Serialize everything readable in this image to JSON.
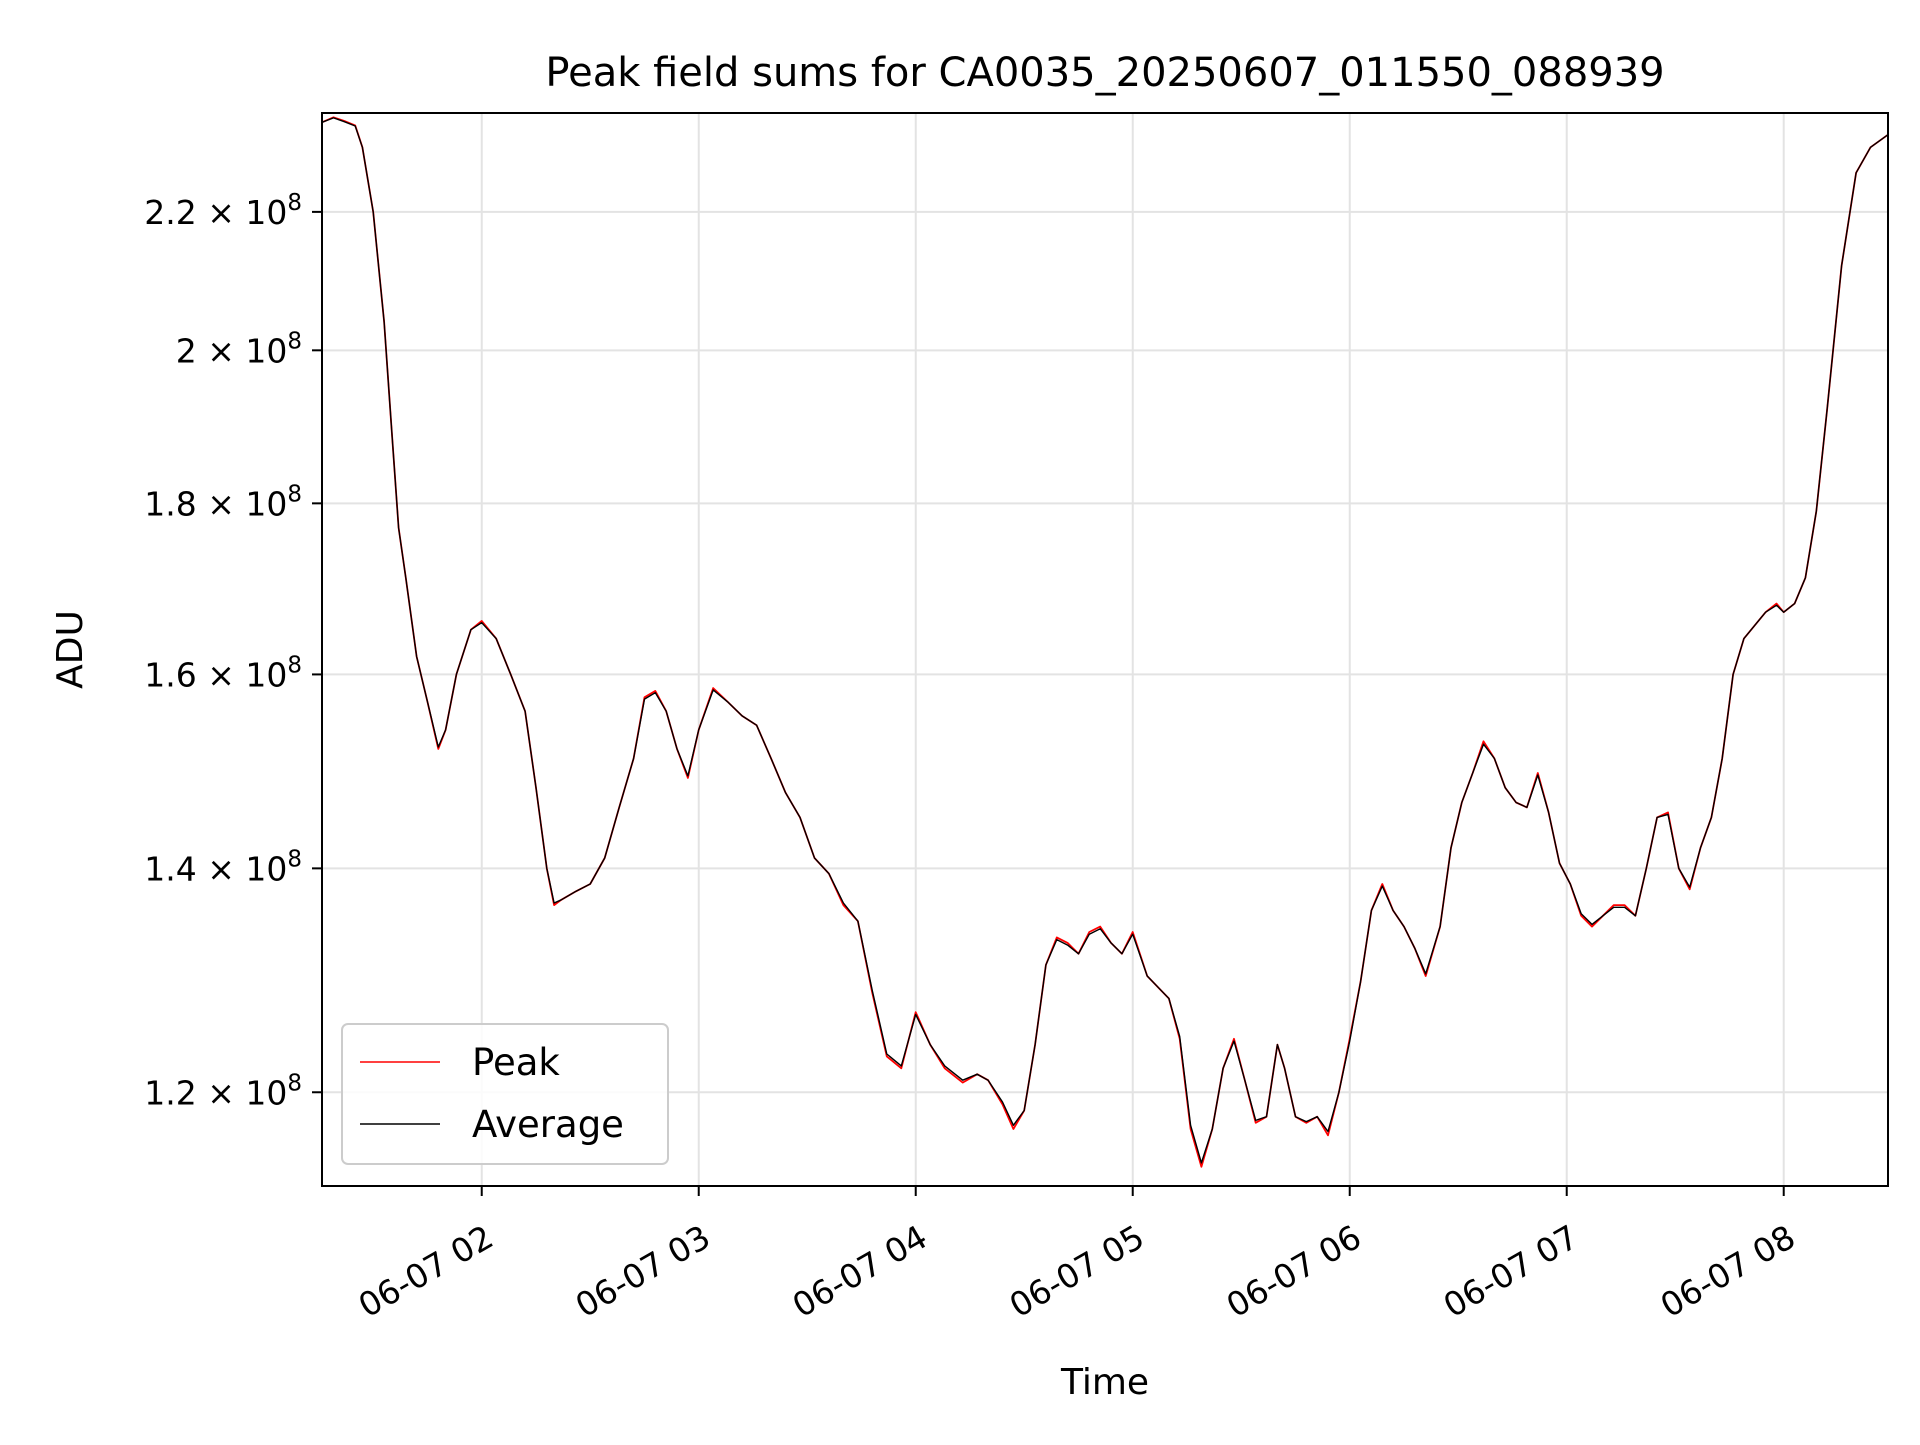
{
  "chart_data": {
    "type": "line",
    "title": "Peak field sums for CA0035_20250607_011550_088939",
    "xlabel": "Time",
    "ylabel": "ADU",
    "scale": {
      "x": "time",
      "y": "log"
    },
    "xlim": [
      "2025-06-07T01:15:50",
      "2025-06-07T08:28:50"
    ],
    "ylim": [
      112500000,
      235500000
    ],
    "xticks": [
      {
        "value": "2025-06-07T02:00",
        "label": "06-07 02"
      },
      {
        "value": "2025-06-07T03:00",
        "label": "06-07 03"
      },
      {
        "value": "2025-06-07T04:00",
        "label": "06-07 04"
      },
      {
        "value": "2025-06-07T05:00",
        "label": "06-07 05"
      },
      {
        "value": "2025-06-07T06:00",
        "label": "06-07 06"
      },
      {
        "value": "2025-06-07T07:00",
        "label": "06-07 07"
      },
      {
        "value": "2025-06-07T08:00",
        "label": "06-07 08"
      }
    ],
    "yticks": [
      {
        "value": 120000000,
        "mantissa": "1.2",
        "exp": "8"
      },
      {
        "value": 140000000,
        "mantissa": "1.4",
        "exp": "8"
      },
      {
        "value": 160000000,
        "mantissa": "1.6",
        "exp": "8"
      },
      {
        "value": 180000000,
        "mantissa": "1.8",
        "exp": "8"
      },
      {
        "value": 200000000,
        "mantissa": "2",
        "exp": "8"
      },
      {
        "value": 220000000,
        "mantissa": "2.2",
        "exp": "8"
      }
    ],
    "grid": true,
    "legend_position": "lower-left",
    "x": [
      "2025-06-07T01:15:50",
      "2025-06-07T01:19:00",
      "2025-06-07T01:22:00",
      "2025-06-07T01:25:00",
      "2025-06-07T01:27:00",
      "2025-06-07T01:30:00",
      "2025-06-07T01:33:00",
      "2025-06-07T01:35:00",
      "2025-06-07T01:37:00",
      "2025-06-07T01:39:00",
      "2025-06-07T01:42:00",
      "2025-06-07T01:45:00",
      "2025-06-07T01:48:00",
      "2025-06-07T01:50:00",
      "2025-06-07T01:53:00",
      "2025-06-07T01:57:00",
      "2025-06-07T02:00:00",
      "2025-06-07T02:04:00",
      "2025-06-07T02:08:00",
      "2025-06-07T02:12:00",
      "2025-06-07T02:15:00",
      "2025-06-07T02:18:00",
      "2025-06-07T02:20:00",
      "2025-06-07T02:22:00",
      "2025-06-07T02:26:00",
      "2025-06-07T02:30:00",
      "2025-06-07T02:34:00",
      "2025-06-07T02:38:00",
      "2025-06-07T02:42:00",
      "2025-06-07T02:45:00",
      "2025-06-07T02:48:00",
      "2025-06-07T02:51:00",
      "2025-06-07T02:54:00",
      "2025-06-07T02:57:00",
      "2025-06-07T03:00:00",
      "2025-06-07T03:04:00",
      "2025-06-07T03:08:00",
      "2025-06-07T03:12:00",
      "2025-06-07T03:16:00",
      "2025-06-07T03:20:00",
      "2025-06-07T03:24:00",
      "2025-06-07T03:28:00",
      "2025-06-07T03:32:00",
      "2025-06-07T03:36:00",
      "2025-06-07T03:40:00",
      "2025-06-07T03:44:00",
      "2025-06-07T03:48:00",
      "2025-06-07T03:52:00",
      "2025-06-07T03:56:00",
      "2025-06-07T04:00:00",
      "2025-06-07T04:04:00",
      "2025-06-07T04:08:00",
      "2025-06-07T04:13:00",
      "2025-06-07T04:17:00",
      "2025-06-07T04:20:00",
      "2025-06-07T04:24:00",
      "2025-06-07T04:27:00",
      "2025-06-07T04:30:00",
      "2025-06-07T04:33:00",
      "2025-06-07T04:36:00",
      "2025-06-07T04:39:00",
      "2025-06-07T04:42:00",
      "2025-06-07T04:45:00",
      "2025-06-07T04:48:00",
      "2025-06-07T04:51:00",
      "2025-06-07T04:54:00",
      "2025-06-07T04:57:00",
      "2025-06-07T05:00:00",
      "2025-06-07T05:04:00",
      "2025-06-07T05:07:00",
      "2025-06-07T05:10:00",
      "2025-06-07T05:13:00",
      "2025-06-07T05:16:00",
      "2025-06-07T05:19:00",
      "2025-06-07T05:22:00",
      "2025-06-07T05:25:00",
      "2025-06-07T05:28:00",
      "2025-06-07T05:31:00",
      "2025-06-07T05:34:00",
      "2025-06-07T05:37:00",
      "2025-06-07T05:40:00",
      "2025-06-07T05:42:00",
      "2025-06-07T05:45:00",
      "2025-06-07T05:48:00",
      "2025-06-07T05:51:00",
      "2025-06-07T05:54:00",
      "2025-06-07T05:57:00",
      "2025-06-07T06:00:00",
      "2025-06-07T06:03:00",
      "2025-06-07T06:06:00",
      "2025-06-07T06:09:00",
      "2025-06-07T06:12:00",
      "2025-06-07T06:15:00",
      "2025-06-07T06:18:00",
      "2025-06-07T06:21:00",
      "2025-06-07T06:25:00",
      "2025-06-07T06:28:00",
      "2025-06-07T06:31:00",
      "2025-06-07T06:34:00",
      "2025-06-07T06:37:00",
      "2025-06-07T06:40:00",
      "2025-06-07T06:43:00",
      "2025-06-07T06:46:00",
      "2025-06-07T06:49:00",
      "2025-06-07T06:52:00",
      "2025-06-07T06:55:00",
      "2025-06-07T06:58:00",
      "2025-06-07T07:01:00",
      "2025-06-07T07:04:00",
      "2025-06-07T07:07:00",
      "2025-06-07T07:10:00",
      "2025-06-07T07:13:00",
      "2025-06-07T07:16:00",
      "2025-06-07T07:19:00",
      "2025-06-07T07:22:00",
      "2025-06-07T07:25:00",
      "2025-06-07T07:28:00",
      "2025-06-07T07:31:00",
      "2025-06-07T07:34:00",
      "2025-06-07T07:37:00",
      "2025-06-07T07:40:00",
      "2025-06-07T07:43:00",
      "2025-06-07T07:46:00",
      "2025-06-07T07:49:00",
      "2025-06-07T07:52:00",
      "2025-06-07T07:55:00",
      "2025-06-07T07:58:00",
      "2025-06-07T08:00:00",
      "2025-06-07T08:03:00",
      "2025-06-07T08:06:00",
      "2025-06-07T08:09:00",
      "2025-06-07T08:12:00",
      "2025-06-07T08:16:00",
      "2025-06-07T08:20:00",
      "2025-06-07T08:24:00",
      "2025-06-07T08:28:50"
    ],
    "series": [
      {
        "name": "Peak",
        "color": "#ff0000",
        "values": [
          234.0,
          234.8,
          234.2,
          233.5,
          230.0,
          220.0,
          204.0,
          190.0,
          177.0,
          171.0,
          162.0,
          157.0,
          152.0,
          154.0,
          160.0,
          165.0,
          166.0,
          164.0,
          160.0,
          156.0,
          148.0,
          140.0,
          136.5,
          137.0,
          137.8,
          138.5,
          141.0,
          146.0,
          151.0,
          157.5,
          158.2,
          156.0,
          152.0,
          149.0,
          154.0,
          158.5,
          157.0,
          155.5,
          154.5,
          151.0,
          147.5,
          145.0,
          141.0,
          139.5,
          136.5,
          135.0,
          128.5,
          123.0,
          122.0,
          126.8,
          124.0,
          122.0,
          120.8,
          121.5,
          121.0,
          119.0,
          117.0,
          118.5,
          124.0,
          131.0,
          133.5,
          133.0,
          132.0,
          134.0,
          134.5,
          133.0,
          132.0,
          134.0,
          130.0,
          129.0,
          128.0,
          124.5,
          117.0,
          114.0,
          117.0,
          122.0,
          124.5,
          121.0,
          117.5,
          118.0,
          124.0,
          122.0,
          118.0,
          117.5,
          118.0,
          116.5,
          120.0,
          124.5,
          129.5,
          136.0,
          138.5,
          136.0,
          134.5,
          132.5,
          130.0,
          134.5,
          142.0,
          146.5,
          149.5,
          152.8,
          151.0,
          148.0,
          146.5,
          146.0,
          149.5,
          145.5,
          140.5,
          138.5,
          135.5,
          134.5,
          135.5,
          136.5,
          136.5,
          135.5,
          140.0,
          145.0,
          145.5,
          140.0,
          138.0,
          142.0,
          145.0,
          151.0,
          160.0,
          164.0,
          165.5,
          167.0,
          168.0,
          167.0,
          168.0,
          171.0,
          179.0,
          192.0,
          212.0,
          226.0,
          230.0,
          232.0
        ]
      },
      {
        "name": "Average",
        "color": "#000000",
        "values": [
          234.0,
          234.7,
          234.1,
          233.4,
          230.0,
          220.0,
          204.0,
          190.0,
          177.0,
          171.0,
          162.0,
          157.0,
          152.2,
          154.0,
          160.0,
          165.0,
          165.8,
          164.0,
          160.0,
          156.0,
          148.0,
          140.0,
          136.7,
          137.0,
          137.8,
          138.5,
          141.0,
          146.0,
          151.0,
          157.3,
          158.0,
          156.0,
          152.0,
          149.2,
          154.0,
          158.3,
          157.0,
          155.5,
          154.5,
          151.0,
          147.5,
          145.0,
          141.0,
          139.5,
          136.7,
          135.0,
          128.7,
          123.2,
          122.2,
          126.6,
          124.0,
          122.2,
          121.0,
          121.5,
          121.0,
          119.2,
          117.3,
          118.5,
          124.0,
          131.0,
          133.3,
          132.8,
          132.0,
          133.8,
          134.3,
          133.0,
          132.0,
          133.8,
          130.0,
          129.0,
          128.0,
          124.7,
          117.3,
          114.3,
          117.0,
          122.0,
          124.3,
          121.0,
          117.7,
          118.0,
          124.0,
          122.0,
          118.0,
          117.6,
          118.0,
          116.8,
          120.0,
          124.3,
          129.5,
          136.0,
          138.3,
          136.0,
          134.5,
          132.5,
          130.2,
          134.5,
          142.0,
          146.5,
          149.5,
          152.5,
          151.0,
          148.0,
          146.5,
          146.0,
          149.3,
          145.5,
          140.5,
          138.5,
          135.7,
          134.7,
          135.5,
          136.3,
          136.3,
          135.5,
          140.0,
          145.0,
          145.3,
          140.0,
          138.2,
          142.0,
          145.0,
          151.0,
          160.0,
          164.0,
          165.5,
          167.0,
          167.8,
          167.0,
          168.0,
          171.0,
          179.0,
          192.0,
          212.0,
          226.0,
          230.0,
          232.0
        ],
        "value_units_note": ""
      }
    ],
    "y_multiplier": 1000000
  }
}
